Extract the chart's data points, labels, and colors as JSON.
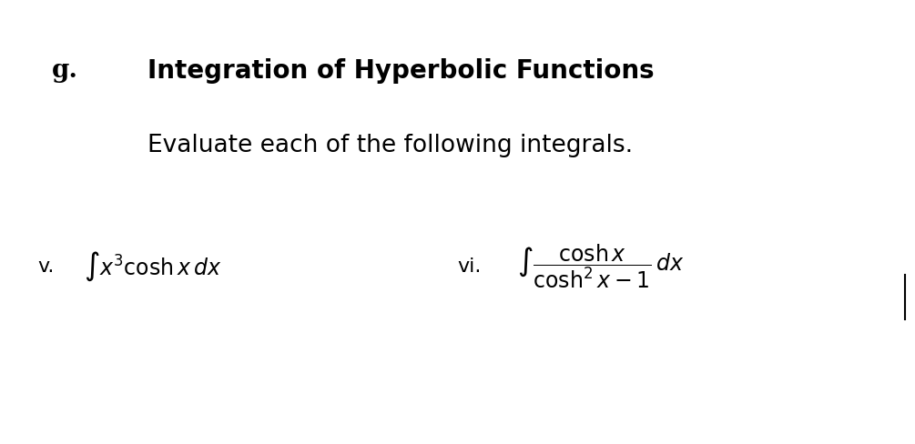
{
  "background_color": "#ffffff",
  "label_g": "g.",
  "title": "Integration of Hyperbolic Functions",
  "subtitle": "Evaluate each of the following integrals.",
  "item_v_label": "v.",
  "item_v_math": "$\\int x^3 \\cosh x\\, dx$",
  "item_vi_label": "vi.",
  "item_vi_math": "$\\int \\dfrac{\\cosh x}{\\cosh^2 x - 1}\\, dx$",
  "title_fontsize": 20,
  "subtitle_fontsize": 19,
  "label_fontsize": 16,
  "math_fontsize": 17,
  "g_fontsize": 20
}
